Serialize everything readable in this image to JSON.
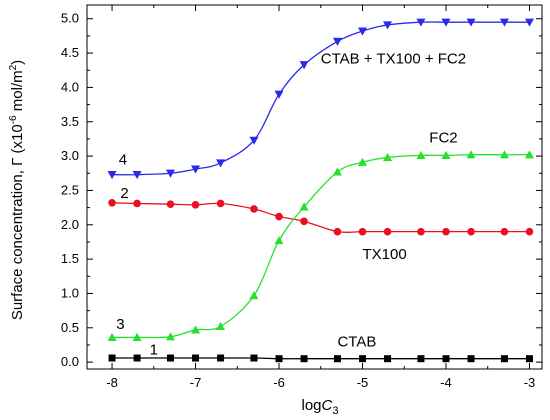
{
  "chart_data": {
    "type": "line",
    "xlabel": {
      "main": "log",
      "italic": "C",
      "sub": "3"
    },
    "ylabel": {
      "prefix": "Surface concentration, Γ (x10",
      "exp1": "-6",
      "mid": " mol/m",
      "exp2": "2",
      "suffix": ")"
    },
    "xlim": [
      -8.3,
      -2.85
    ],
    "ylim": [
      -0.1,
      5.2
    ],
    "xticks": [
      -8,
      -7,
      -6,
      -5,
      -4,
      -3
    ],
    "xtick_labels": [
      "-8",
      "-7",
      "-6",
      "-5",
      "-4",
      "-3"
    ],
    "yticks": [
      0.0,
      0.5,
      1.0,
      1.5,
      2.0,
      2.5,
      3.0,
      3.5,
      4.0,
      4.5,
      5.0
    ],
    "ytick_labels": [
      "0.0",
      "0.5",
      "1.0",
      "1.5",
      "2.0",
      "2.5",
      "3.0",
      "3.5",
      "4.0",
      "4.5",
      "5.0"
    ],
    "series": [
      {
        "number": "1",
        "name": "CTAB",
        "color": "#000000",
        "marker": "square",
        "x": [
          -8,
          -7.7,
          -7.3,
          -7,
          -6.7,
          -6.3,
          -6,
          -5.7,
          -5.3,
          -5,
          -4.7,
          -4.3,
          -4,
          -3.7,
          -3.3,
          -3
        ],
        "y": [
          0.06,
          0.06,
          0.06,
          0.06,
          0.06,
          0.06,
          0.05,
          0.05,
          0.05,
          0.05,
          0.05,
          0.05,
          0.05,
          0.05,
          0.05,
          0.05
        ]
      },
      {
        "number": "2",
        "name": "TX100",
        "color": "#e8111f",
        "marker": "circle",
        "x": [
          -8,
          -7.7,
          -7.3,
          -7,
          -6.7,
          -6.3,
          -6,
          -5.7,
          -5.3,
          -5,
          -4.7,
          -4.3,
          -4,
          -3.7,
          -3.3,
          -3
        ],
        "y": [
          2.32,
          2.31,
          2.3,
          2.29,
          2.31,
          2.23,
          2.12,
          2.05,
          1.9,
          1.9,
          1.9,
          1.9,
          1.9,
          1.9,
          1.9,
          1.9
        ]
      },
      {
        "number": "3",
        "name": "FC2",
        "color": "#27e02b",
        "marker": "triangle-up",
        "x": [
          -8,
          -7.7,
          -7.3,
          -7,
          -6.7,
          -6.3,
          -6,
          -5.7,
          -5.3,
          -5,
          -4.7,
          -4.3,
          -4,
          -3.7,
          -3.3,
          -3
        ],
        "y": [
          0.36,
          0.36,
          0.37,
          0.47,
          0.52,
          0.97,
          1.77,
          2.26,
          2.77,
          2.91,
          2.98,
          3.01,
          3.01,
          3.02,
          3.02,
          3.02
        ]
      },
      {
        "number": "4",
        "name": "CTAB + TX100 + FC2",
        "color": "#2a2ae8",
        "marker": "triangle-down",
        "x": [
          -8,
          -7.7,
          -7.3,
          -7,
          -6.7,
          -6.3,
          -6,
          -5.7,
          -5.3,
          -5,
          -4.7,
          -4.3,
          -4,
          -3.7,
          -3.3,
          -3
        ],
        "y": [
          2.73,
          2.73,
          2.75,
          2.81,
          2.9,
          3.23,
          3.9,
          4.33,
          4.67,
          4.82,
          4.91,
          4.95,
          4.95,
          4.95,
          4.95,
          4.95
        ]
      }
    ],
    "annotations": [
      {
        "text": "CTAB + TX100 + FC2",
        "x": -5.5,
        "y": 4.35
      },
      {
        "text": "FC2",
        "x": -4.2,
        "y": 3.2
      },
      {
        "text": "TX100",
        "x": -5,
        "y": 1.5
      },
      {
        "text": "CTAB",
        "x": -5.3,
        "y": 0.23
      },
      {
        "text": "4",
        "x": -7.92,
        "y": 2.88
      },
      {
        "text": "2",
        "x": -7.9,
        "y": 2.39
      },
      {
        "text": "3",
        "x": -7.95,
        "y": 0.48
      },
      {
        "text": "1",
        "x": -7.55,
        "y": 0.11
      }
    ]
  }
}
